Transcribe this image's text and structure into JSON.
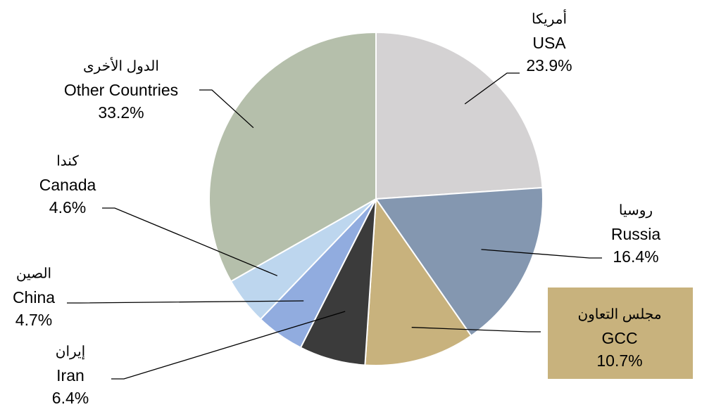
{
  "chart_data": {
    "type": "pie",
    "title": "",
    "start_angle_deg": 0,
    "direction": "clockwise",
    "slices": [
      {
        "label_ar": "أمريكا",
        "label_en": "USA",
        "value": 23.9,
        "value_label": "23.9%",
        "color": "#D4D2D3"
      },
      {
        "label_ar": "روسيا",
        "label_en": "Russia",
        "value": 16.4,
        "value_label": "16.4%",
        "color": "#8497B0"
      },
      {
        "label_ar": "مجلس التعاون",
        "label_en": "GCC",
        "value": 10.7,
        "value_label": "10.7%",
        "color": "#C8B27D",
        "label_box": true
      },
      {
        "label_ar": "إيران",
        "label_en": "Iran",
        "value": 6.4,
        "value_label": "6.4%",
        "color": "#3B3B3B"
      },
      {
        "label_ar": "الصين",
        "label_en": "China",
        "value": 4.7,
        "value_label": "4.7%",
        "color": "#91ACDF"
      },
      {
        "label_ar": "كندا",
        "label_en": "Canada",
        "value": 4.6,
        "value_label": "4.6%",
        "color": "#BDD6EE"
      },
      {
        "label_ar": "الدول الأخرى",
        "label_en": "Other Countries",
        "value": 33.2,
        "value_label": "33.2%",
        "color": "#B5BFAB"
      }
    ],
    "legend": "none"
  }
}
